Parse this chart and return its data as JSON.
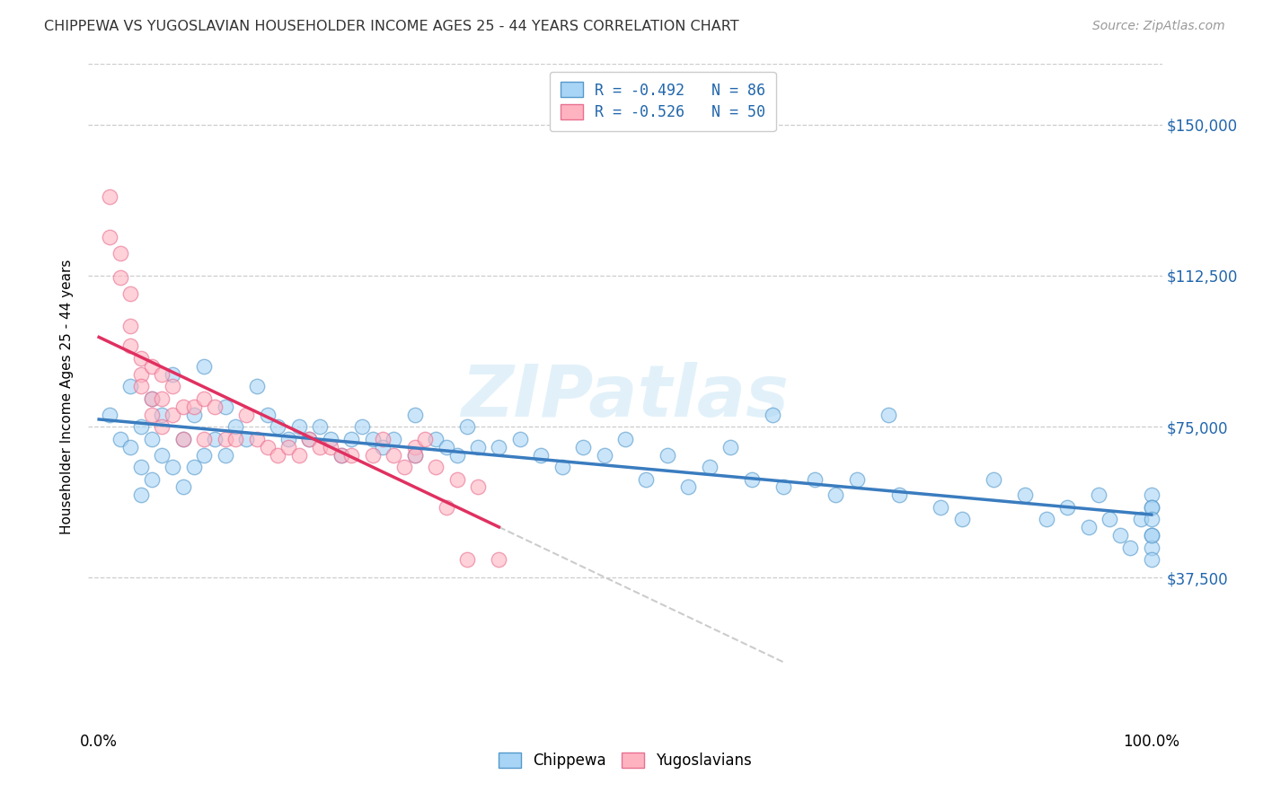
{
  "title": "CHIPPEWA VS YUGOSLAVIAN HOUSEHOLDER INCOME AGES 25 - 44 YEARS CORRELATION CHART",
  "source": "Source: ZipAtlas.com",
  "ylabel": "Householder Income Ages 25 - 44 years",
  "ytick_labels": [
    "$37,500",
    "$75,000",
    "$112,500",
    "$150,000"
  ],
  "ytick_values": [
    37500,
    75000,
    112500,
    150000
  ],
  "ylim": [
    0,
    165000
  ],
  "xlim": [
    -0.01,
    1.01
  ],
  "legend_line1": "R = -0.492   N = 86",
  "legend_line2": "R = -0.526   N = 50",
  "chippewa_color": "#a8d4f5",
  "chippewa_edge_color": "#5599cc",
  "yugoslavian_color": "#ffb3c1",
  "yugoslavian_edge_color": "#e87090",
  "chippewa_line_color": "#3a7cbf",
  "yugoslavian_line_color": "#e03060",
  "dashed_extend_color": "#cccccc",
  "grid_color": "#cccccc",
  "watermark": "ZIPatlas",
  "chippewa_x": [
    0.01,
    0.02,
    0.03,
    0.03,
    0.04,
    0.04,
    0.04,
    0.05,
    0.05,
    0.05,
    0.06,
    0.06,
    0.07,
    0.07,
    0.08,
    0.08,
    0.09,
    0.09,
    0.1,
    0.1,
    0.11,
    0.12,
    0.12,
    0.13,
    0.14,
    0.15,
    0.16,
    0.17,
    0.18,
    0.19,
    0.2,
    0.21,
    0.22,
    0.23,
    0.24,
    0.25,
    0.26,
    0.27,
    0.28,
    0.3,
    0.3,
    0.32,
    0.33,
    0.34,
    0.35,
    0.36,
    0.38,
    0.4,
    0.42,
    0.44,
    0.46,
    0.48,
    0.5,
    0.52,
    0.54,
    0.56,
    0.58,
    0.6,
    0.62,
    0.64,
    0.65,
    0.68,
    0.7,
    0.72,
    0.75,
    0.76,
    0.8,
    0.82,
    0.85,
    0.88,
    0.9,
    0.92,
    0.94,
    0.95,
    0.96,
    0.97,
    0.98,
    0.99,
    1.0,
    1.0,
    1.0,
    1.0,
    1.0,
    1.0,
    1.0,
    1.0
  ],
  "chippewa_y": [
    78000,
    72000,
    85000,
    70000,
    75000,
    65000,
    58000,
    82000,
    72000,
    62000,
    78000,
    68000,
    88000,
    65000,
    72000,
    60000,
    78000,
    65000,
    90000,
    68000,
    72000,
    80000,
    68000,
    75000,
    72000,
    85000,
    78000,
    75000,
    72000,
    75000,
    72000,
    75000,
    72000,
    68000,
    72000,
    75000,
    72000,
    70000,
    72000,
    78000,
    68000,
    72000,
    70000,
    68000,
    75000,
    70000,
    70000,
    72000,
    68000,
    65000,
    70000,
    68000,
    72000,
    62000,
    68000,
    60000,
    65000,
    70000,
    62000,
    78000,
    60000,
    62000,
    58000,
    62000,
    78000,
    58000,
    55000,
    52000,
    62000,
    58000,
    52000,
    55000,
    50000,
    58000,
    52000,
    48000,
    45000,
    52000,
    58000,
    55000,
    48000,
    45000,
    55000,
    42000,
    52000,
    48000
  ],
  "yugoslavian_x": [
    0.01,
    0.01,
    0.02,
    0.02,
    0.03,
    0.03,
    0.03,
    0.04,
    0.04,
    0.04,
    0.05,
    0.05,
    0.05,
    0.06,
    0.06,
    0.06,
    0.07,
    0.07,
    0.08,
    0.08,
    0.09,
    0.1,
    0.1,
    0.11,
    0.12,
    0.13,
    0.14,
    0.15,
    0.16,
    0.17,
    0.18,
    0.19,
    0.2,
    0.21,
    0.22,
    0.23,
    0.24,
    0.26,
    0.27,
    0.28,
    0.29,
    0.3,
    0.3,
    0.31,
    0.32,
    0.33,
    0.34,
    0.35,
    0.36,
    0.38
  ],
  "yugoslavian_y": [
    132000,
    122000,
    118000,
    112000,
    108000,
    100000,
    95000,
    92000,
    88000,
    85000,
    90000,
    82000,
    78000,
    88000,
    82000,
    75000,
    85000,
    78000,
    80000,
    72000,
    80000,
    82000,
    72000,
    80000,
    72000,
    72000,
    78000,
    72000,
    70000,
    68000,
    70000,
    68000,
    72000,
    70000,
    70000,
    68000,
    68000,
    68000,
    72000,
    68000,
    65000,
    70000,
    68000,
    72000,
    65000,
    55000,
    62000,
    42000,
    60000,
    42000
  ]
}
